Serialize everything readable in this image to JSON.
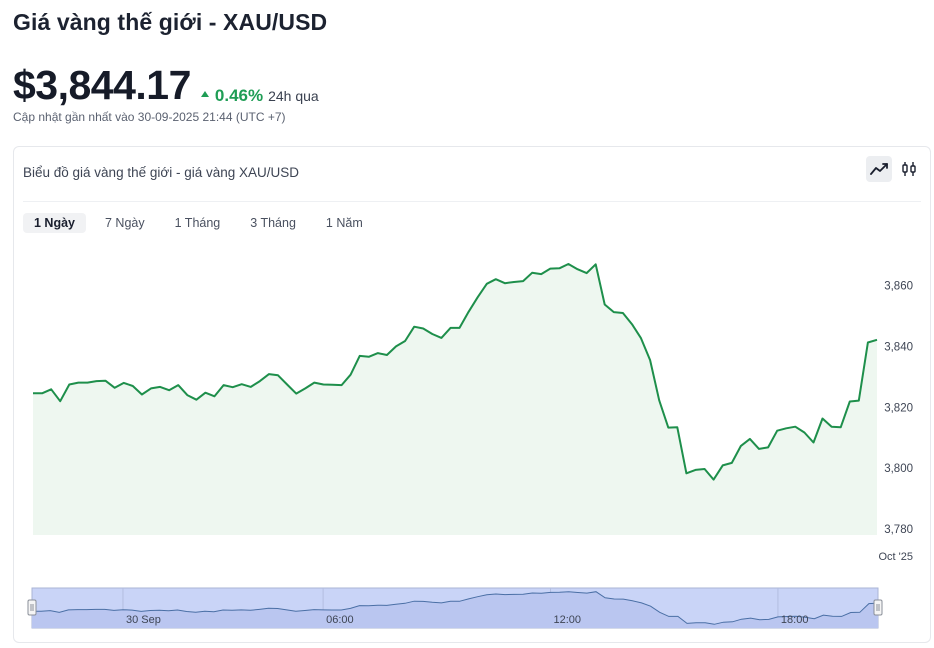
{
  "header": {
    "title": "Giá vàng thế giới - XAU/USD",
    "price": "$3,844.17",
    "change": "0.46%",
    "change_period": "24h qua",
    "updated": "Cập nhật gần nhất vào 30-09-2025 21:44 (UTC +7)"
  },
  "card": {
    "title": "Biểu đồ giá vàng thế giới - giá vàng XAU/USD",
    "chart_types": [
      "line-chart-icon",
      "candlestick-icon"
    ],
    "ranges": [
      "1 Ngày",
      "7 Ngày",
      "1 Tháng",
      "3 Tháng",
      "1 Năm"
    ],
    "active_range": 0
  },
  "colors": {
    "line": "#1e8f4b",
    "area": "#eef7f0",
    "up": "#1f9d55",
    "navigator_fill": "#c9d4f7"
  },
  "chart_data": {
    "type": "line",
    "ylim": [
      3778,
      3875
    ],
    "yticks": [
      3780,
      3800,
      3820,
      3840,
      3860
    ],
    "ytick_labels": [
      "3,780",
      "3,800",
      "3,820",
      "3,840",
      "3,860"
    ],
    "xlabel_main": "Oct '25",
    "navigator_labels": [
      {
        "label": "30 Sep",
        "index": 10
      },
      {
        "label": "06:00",
        "index": 32
      },
      {
        "label": "12:00",
        "index": 57
      },
      {
        "label": "18:00",
        "index": 82
      }
    ],
    "series": [
      {
        "values": [
          3824.6,
          3824.6,
          3825.9,
          3822,
          3827.5,
          3828.1,
          3828.1,
          3828.6,
          3828.7,
          3826.4,
          3828,
          3827,
          3824.2,
          3826.2,
          3826.7,
          3825.6,
          3827.3,
          3824,
          3822.5,
          3824.8,
          3823.6,
          3827.3,
          3826.6,
          3827.6,
          3826.7,
          3828.6,
          3830.9,
          3830.5,
          3827.5,
          3824.5,
          3826.2,
          3828.1,
          3827.5,
          3827.4,
          3827.3,
          3830.7,
          3836.9,
          3836.6,
          3837.8,
          3837.2,
          3840,
          3841.8,
          3846.5,
          3845.9,
          3844.1,
          3842.8,
          3846.1,
          3846.1,
          3851.4,
          3856.2,
          3860.6,
          3862.1,
          3860.8,
          3861.2,
          3861.5,
          3864.2,
          3863.8,
          3865.6,
          3865.7,
          3867.1,
          3865.4,
          3864.1,
          3867,
          3853.8,
          3851.3,
          3851,
          3847.3,
          3842.7,
          3835.5,
          3822.3,
          3813.3,
          3813.4,
          3798.3,
          3799.4,
          3799.7,
          3796.2,
          3800.9,
          3801.7,
          3807.3,
          3809.6,
          3806.3,
          3806.8,
          3812.3,
          3813.1,
          3813.6,
          3811.7,
          3808.4,
          3816.3,
          3813.6,
          3813.4,
          3821.9,
          3822.2,
          3841.3,
          3842.2
        ]
      }
    ]
  }
}
